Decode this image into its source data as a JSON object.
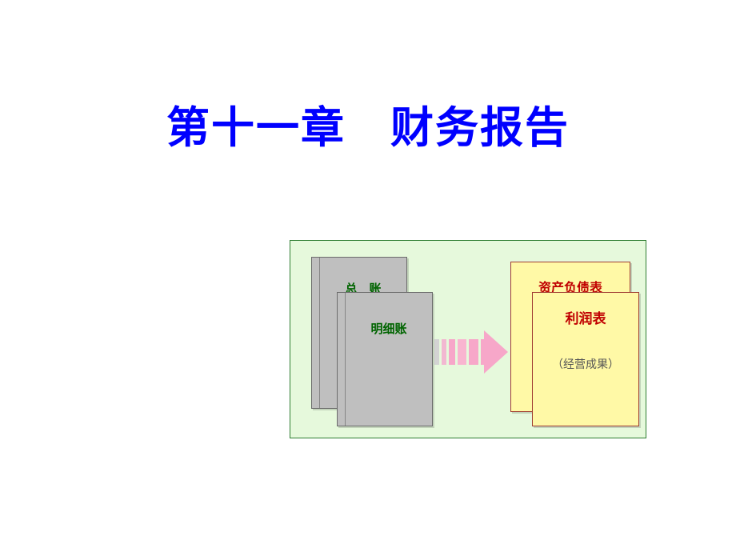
{
  "title": {
    "text": "第十一章　财务报告",
    "color": "#0000ff",
    "fontsize": 54
  },
  "diagram": {
    "background_color": "#e6f9dc",
    "border_color": "#2e7d32",
    "ledger_back": {
      "label": "总　账",
      "fill": "#bfbfbf",
      "border": "#6b6b6b",
      "label_color": "#006400",
      "label_fontsize": 15
    },
    "ledger_front": {
      "label": "明细账",
      "fill": "#bfbfbf",
      "border": "#6b6b6b",
      "label_color": "#006400",
      "label_fontsize": 15
    },
    "arrow": {
      "head_color": "#f7a7c9",
      "bars": [
        {
          "color": "#d3d3d3",
          "width": 6
        },
        {
          "color": "#f2b8d1",
          "width": 6
        },
        {
          "color": "#f7a7c9",
          "width": 9
        },
        {
          "color": "#f9b5d0",
          "width": 11
        },
        {
          "color": "#f7a7c9",
          "width": 13
        },
        {
          "color": "#f7a7c9",
          "width": 6
        }
      ]
    },
    "report_back": {
      "title": "资产负债表",
      "fill": "#fff9a6",
      "border": "#a03c32",
      "title_color": "#c00000",
      "title_fontsize": 16
    },
    "report_front": {
      "title": "利润表",
      "subtitle": "（经营成果）",
      "fill": "#fff9a6",
      "border": "#a03c32",
      "title_color": "#c00000",
      "title_fontsize": 17,
      "subtitle_color": "#555555",
      "subtitle_fontsize": 14
    }
  }
}
